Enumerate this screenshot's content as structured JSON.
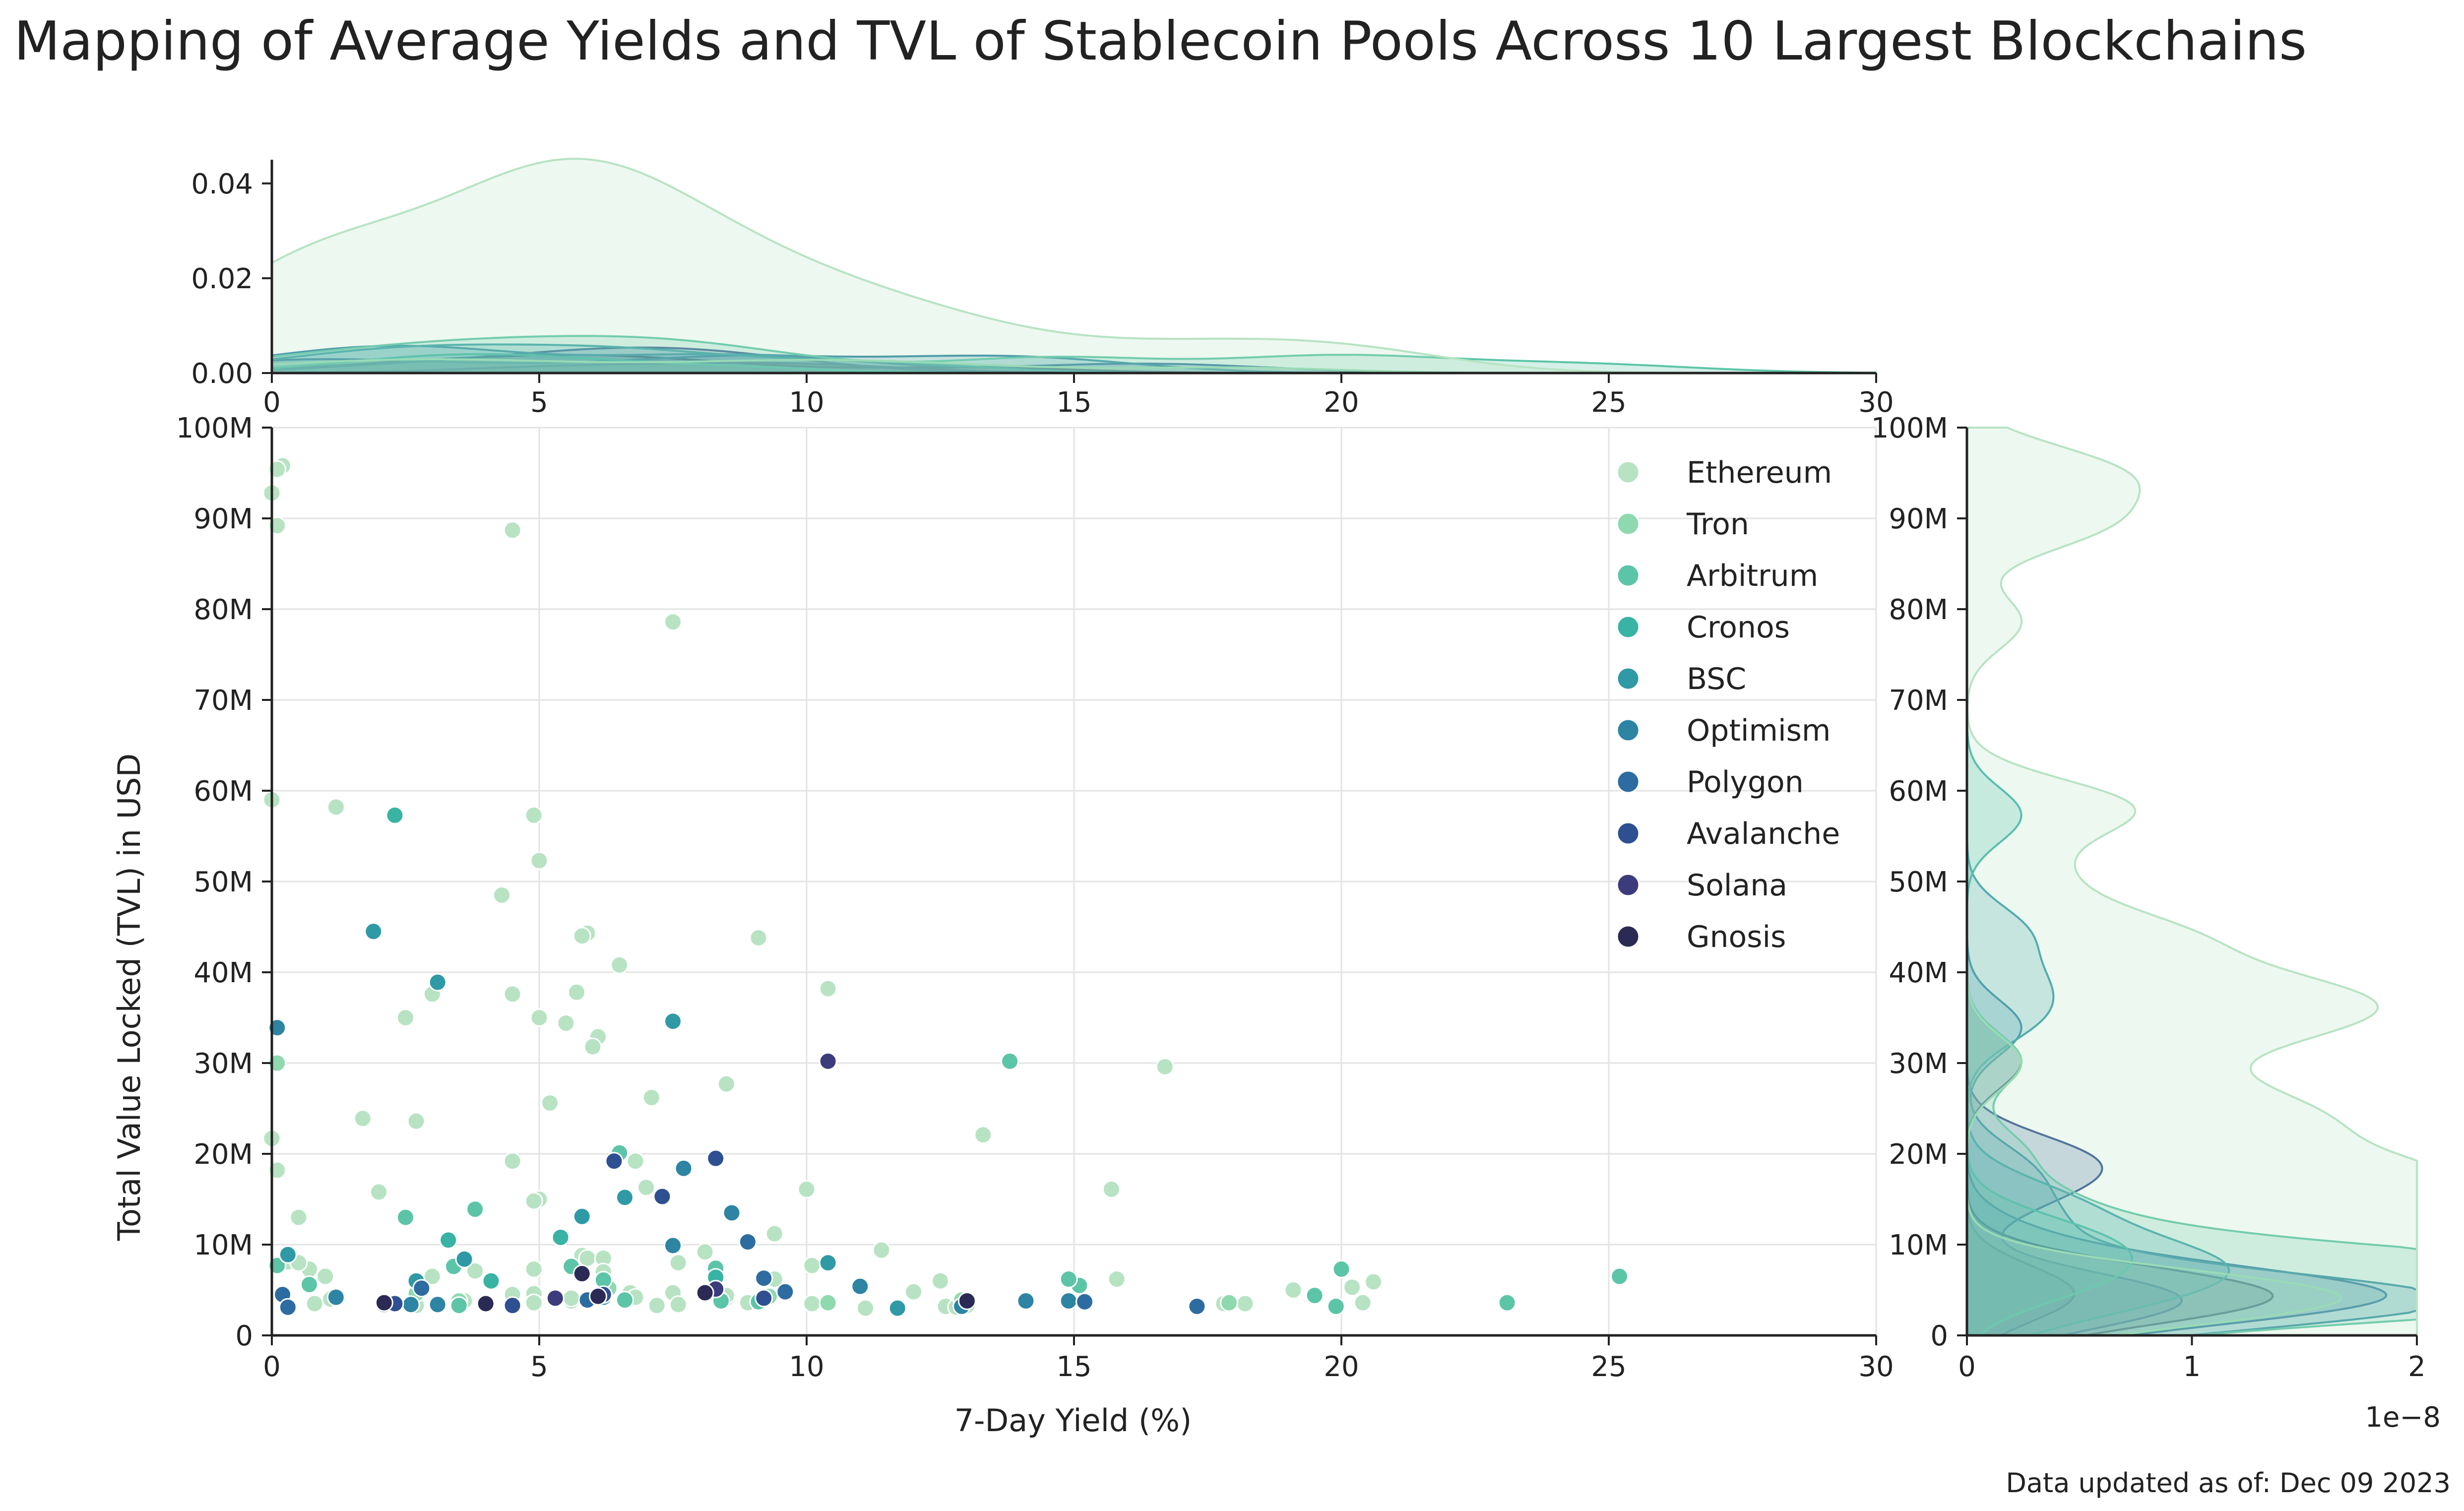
{
  "chart_data": {
    "type": "scatter",
    "title": "Mapping of Average Yields and TVL of Stablecoin Pools Across 10 Largest Blockchains",
    "xlabel": "7-Day Yield (%)",
    "ylabel": "Total Value Locked (TVL) in USD",
    "xlim": [
      0,
      30
    ],
    "ylim": [
      0,
      100000000
    ],
    "x_ticks": [
      "0",
      "5",
      "10",
      "15",
      "20",
      "25",
      "30"
    ],
    "y_ticks": [
      "0",
      "10M",
      "20M",
      "30M",
      "40M",
      "50M",
      "60M",
      "70M",
      "80M",
      "90M",
      "100M"
    ],
    "grid": true,
    "legend_position": "top-right",
    "top_kde": {
      "ylim": [
        0,
        0.045
      ],
      "ticks": [
        "0.00",
        "0.02",
        "0.04"
      ]
    },
    "right_kde": {
      "xlim": [
        0,
        2
      ],
      "ticks": [
        "0",
        "1",
        "2"
      ],
      "offset_label": "1e−8"
    },
    "footnote": "Data updated as of: Dec 09 2023",
    "series": [
      {
        "name": "Ethereum",
        "color": "#b7e3c3",
        "points": [
          [
            0.2,
            95.8
          ],
          [
            0.1,
            95.4
          ],
          [
            0,
            92.8
          ],
          [
            0.1,
            89.2
          ],
          [
            4.5,
            88.7
          ],
          [
            7.5,
            78.6
          ],
          [
            0,
            59
          ],
          [
            1.2,
            58.2
          ],
          [
            4.9,
            57.3
          ],
          [
            5,
            52.3
          ],
          [
            4.3,
            48.5
          ],
          [
            9.1,
            43.8
          ],
          [
            5.9,
            44.3
          ],
          [
            5.8,
            44
          ],
          [
            6.5,
            40.8
          ],
          [
            10.4,
            38.2
          ],
          [
            3,
            37.6
          ],
          [
            4.5,
            37.6
          ],
          [
            5.7,
            37.8
          ],
          [
            2.5,
            35
          ],
          [
            5,
            35
          ],
          [
            6.1,
            32.9
          ],
          [
            6,
            31.8
          ],
          [
            5.5,
            34.4
          ],
          [
            16.7,
            29.6
          ],
          [
            8.5,
            27.7
          ],
          [
            7.1,
            26.2
          ],
          [
            5.2,
            25.6
          ],
          [
            1.7,
            23.9
          ],
          [
            2.7,
            23.6
          ],
          [
            13.3,
            22.1
          ],
          [
            0,
            21.7
          ],
          [
            0.1,
            18.2
          ],
          [
            4.5,
            19.2
          ],
          [
            6.8,
            19.2
          ],
          [
            15.7,
            16.1
          ],
          [
            10,
            16.1
          ],
          [
            7,
            16.3
          ],
          [
            2,
            15.8
          ],
          [
            5,
            15
          ],
          [
            4.9,
            14.8
          ],
          [
            0.5,
            13
          ],
          [
            9.4,
            11.2
          ],
          [
            11.4,
            9.4
          ],
          [
            0.3,
            8.1
          ],
          [
            0.7,
            7.3
          ],
          [
            1,
            6.5
          ],
          [
            0.5,
            8
          ],
          [
            3.8,
            7.1
          ],
          [
            4.9,
            7.3
          ],
          [
            5.8,
            8.8
          ],
          [
            5.9,
            8.5
          ],
          [
            6.2,
            8.5
          ],
          [
            7.6,
            8
          ],
          [
            8.1,
            9.2
          ],
          [
            10.1,
            7.7
          ],
          [
            12.5,
            6
          ],
          [
            15.8,
            6.2
          ],
          [
            20.6,
            5.9
          ],
          [
            20.2,
            5.3
          ],
          [
            19.1,
            5
          ],
          [
            12,
            4.8
          ],
          [
            8.5,
            4.1
          ],
          [
            6.2,
            7
          ],
          [
            4.5,
            4.5
          ],
          [
            4.9,
            4.6
          ],
          [
            6.7,
            4.7
          ],
          [
            7.5,
            4.7
          ],
          [
            9.4,
            6.2
          ],
          [
            3,
            6.5
          ],
          [
            0.8,
            3.5
          ],
          [
            1.1,
            4
          ],
          [
            2.2,
            3.5
          ],
          [
            3.6,
            3.8
          ],
          [
            4.9,
            3.6
          ],
          [
            5.6,
            3.8
          ],
          [
            6.8,
            4.2
          ],
          [
            7.2,
            3.3
          ],
          [
            7.6,
            3.4
          ],
          [
            8.9,
            3.6
          ],
          [
            10.1,
            3.5
          ],
          [
            10.4,
            3.5
          ],
          [
            11.1,
            3
          ],
          [
            12.6,
            3.2
          ],
          [
            12.8,
            3.1
          ],
          [
            13,
            3.3
          ],
          [
            17.8,
            3.5
          ],
          [
            18.2,
            3.5
          ],
          [
            20.4,
            3.6
          ],
          [
            0.3,
            3.2
          ],
          [
            2.7,
            3.3
          ],
          [
            5.6,
            4.1
          ],
          [
            8.5,
            4.4
          ]
        ]
      },
      {
        "name": "Tron",
        "color": "#8fd9b0",
        "points": [
          [
            0.1,
            30
          ],
          [
            3.5,
            3.8
          ],
          [
            6.3,
            5.2
          ],
          [
            2.7,
            4.6
          ],
          [
            9.3,
            4.3
          ],
          [
            10.4,
            3.6
          ],
          [
            12.9,
            3.9
          ],
          [
            17.9,
            3.6
          ]
        ]
      },
      {
        "name": "Arbitrum",
        "color": "#5cc5a7",
        "points": [
          [
            25.2,
            6.5
          ],
          [
            23.1,
            3.6
          ],
          [
            19.9,
            3.2
          ],
          [
            20,
            7.3
          ],
          [
            19.5,
            4.4
          ],
          [
            15.1,
            5.5
          ],
          [
            14.9,
            6.2
          ],
          [
            13.8,
            30.2
          ],
          [
            6.5,
            20.1
          ],
          [
            3.8,
            13.9
          ],
          [
            2.5,
            13
          ],
          [
            3.4,
            7.6
          ],
          [
            0.7,
            5.6
          ],
          [
            0.1,
            7.7
          ],
          [
            5.6,
            7.6
          ],
          [
            6.2,
            6.1
          ],
          [
            8.3,
            7.4
          ],
          [
            3.5,
            3.3
          ],
          [
            6.6,
            3.9
          ],
          [
            8.4,
            3.8
          ],
          [
            9.1,
            3.7
          ]
        ]
      },
      {
        "name": "Cronos",
        "color": "#38b3a4",
        "points": [
          [
            2.3,
            57.3
          ],
          [
            3.3,
            10.5
          ],
          [
            5.4,
            10.8
          ],
          [
            8.3,
            6.4
          ],
          [
            4.1,
            6
          ]
        ]
      },
      {
        "name": "BSC",
        "color": "#2f9aa6",
        "points": [
          [
            1.9,
            44.5
          ],
          [
            3.1,
            38.9
          ],
          [
            7.5,
            34.6
          ],
          [
            5.8,
            13.1
          ],
          [
            6.6,
            15.2
          ],
          [
            10.4,
            8
          ],
          [
            0.3,
            8.9
          ],
          [
            2.7,
            6
          ],
          [
            3.6,
            8.4
          ],
          [
            6.2,
            4.2
          ],
          [
            11.7,
            3
          ]
        ]
      },
      {
        "name": "Optimism",
        "color": "#2d84a3",
        "points": [
          [
            0.1,
            33.9
          ],
          [
            7.7,
            18.4
          ],
          [
            7.5,
            9.9
          ],
          [
            8.6,
            13.5
          ],
          [
            11,
            5.4
          ],
          [
            14.1,
            3.8
          ],
          [
            14.9,
            3.8
          ],
          [
            12.9,
            3.2
          ],
          [
            2.1,
            3.4
          ],
          [
            2.6,
            3.4
          ],
          [
            3.1,
            3.4
          ],
          [
            4,
            3.6
          ],
          [
            1.2,
            4.2
          ]
        ]
      },
      {
        "name": "Polygon",
        "color": "#2d6ca0",
        "points": [
          [
            8.9,
            10.3
          ],
          [
            9.2,
            6.3
          ],
          [
            9.6,
            4.8
          ],
          [
            15.2,
            3.7
          ],
          [
            17.3,
            3.2
          ],
          [
            0.2,
            4.5
          ],
          [
            0.3,
            3.1
          ],
          [
            2.8,
            5.2
          ],
          [
            5.9,
            3.9
          ]
        ]
      },
      {
        "name": "Avalanche",
        "color": "#2e4f91",
        "points": [
          [
            6.4,
            19.2
          ],
          [
            8.3,
            19.5
          ],
          [
            7.3,
            15.3
          ],
          [
            9.2,
            4.1
          ],
          [
            2.3,
            3.5
          ],
          [
            4.5,
            3.3
          ],
          [
            6.2,
            4.5
          ]
        ]
      },
      {
        "name": "Solana",
        "color": "#3c3b7c",
        "points": [
          [
            10.4,
            30.2
          ],
          [
            8.3,
            5.1
          ],
          [
            5.3,
            4.1
          ]
        ]
      },
      {
        "name": "Gnosis",
        "color": "#2b2a55",
        "points": [
          [
            5.8,
            6.8
          ],
          [
            8.1,
            4.7
          ],
          [
            2.1,
            3.6
          ],
          [
            4,
            3.5
          ],
          [
            13,
            3.8
          ],
          [
            6.1,
            4.3
          ]
        ]
      }
    ]
  }
}
